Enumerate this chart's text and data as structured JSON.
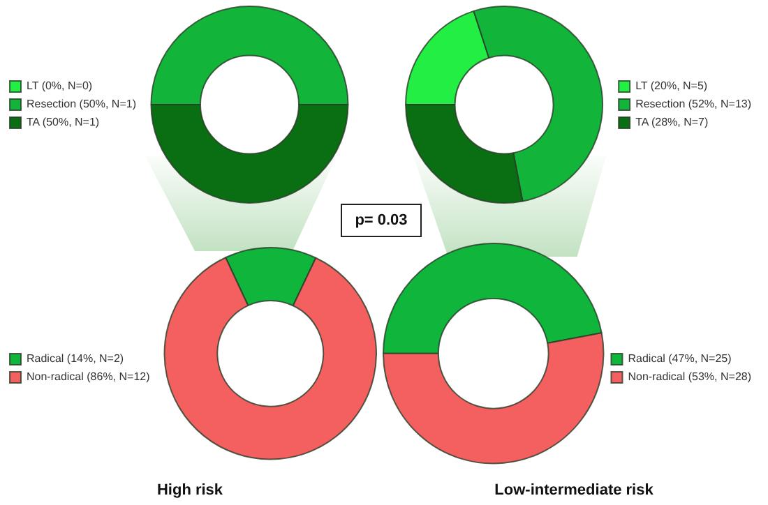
{
  "chart_data": [
    {
      "type": "donut",
      "categories": [
        "LT (0%, N=0)",
        "Resection (50%, N=1)",
        "TA (50%, N=1)"
      ],
      "values": [
        0,
        50,
        50
      ],
      "colors": [
        "#22ee44",
        "#12b53a",
        "#0a6e12"
      ],
      "legend": "left"
    },
    {
      "type": "donut",
      "categories": [
        "LT (20%, N=5)",
        "Resection (52%, N=13)",
        "TA (28%, N=7)"
      ],
      "values": [
        20,
        52,
        28
      ],
      "colors": [
        "#22ee44",
        "#12b53a",
        "#0a6e12"
      ],
      "legend": "right"
    },
    {
      "type": "donut",
      "title": "High risk",
      "categories": [
        "Radical (14%, N=2)",
        "Non-radical (86%, N=12)"
      ],
      "values": [
        14,
        86
      ],
      "colors": [
        "#10b53c",
        "#f46060"
      ],
      "legend": "left"
    },
    {
      "type": "donut",
      "title": "Low-intermediate risk",
      "categories": [
        "Radical (47%, N=25)",
        "Non-radical (53%, N=28)"
      ],
      "values": [
        47,
        53
      ],
      "colors": [
        "#10b53c",
        "#f46060"
      ],
      "legend": "right"
    },
    {
      "type": "other",
      "annotations": [
        "p= 0.03"
      ]
    }
  ]
}
